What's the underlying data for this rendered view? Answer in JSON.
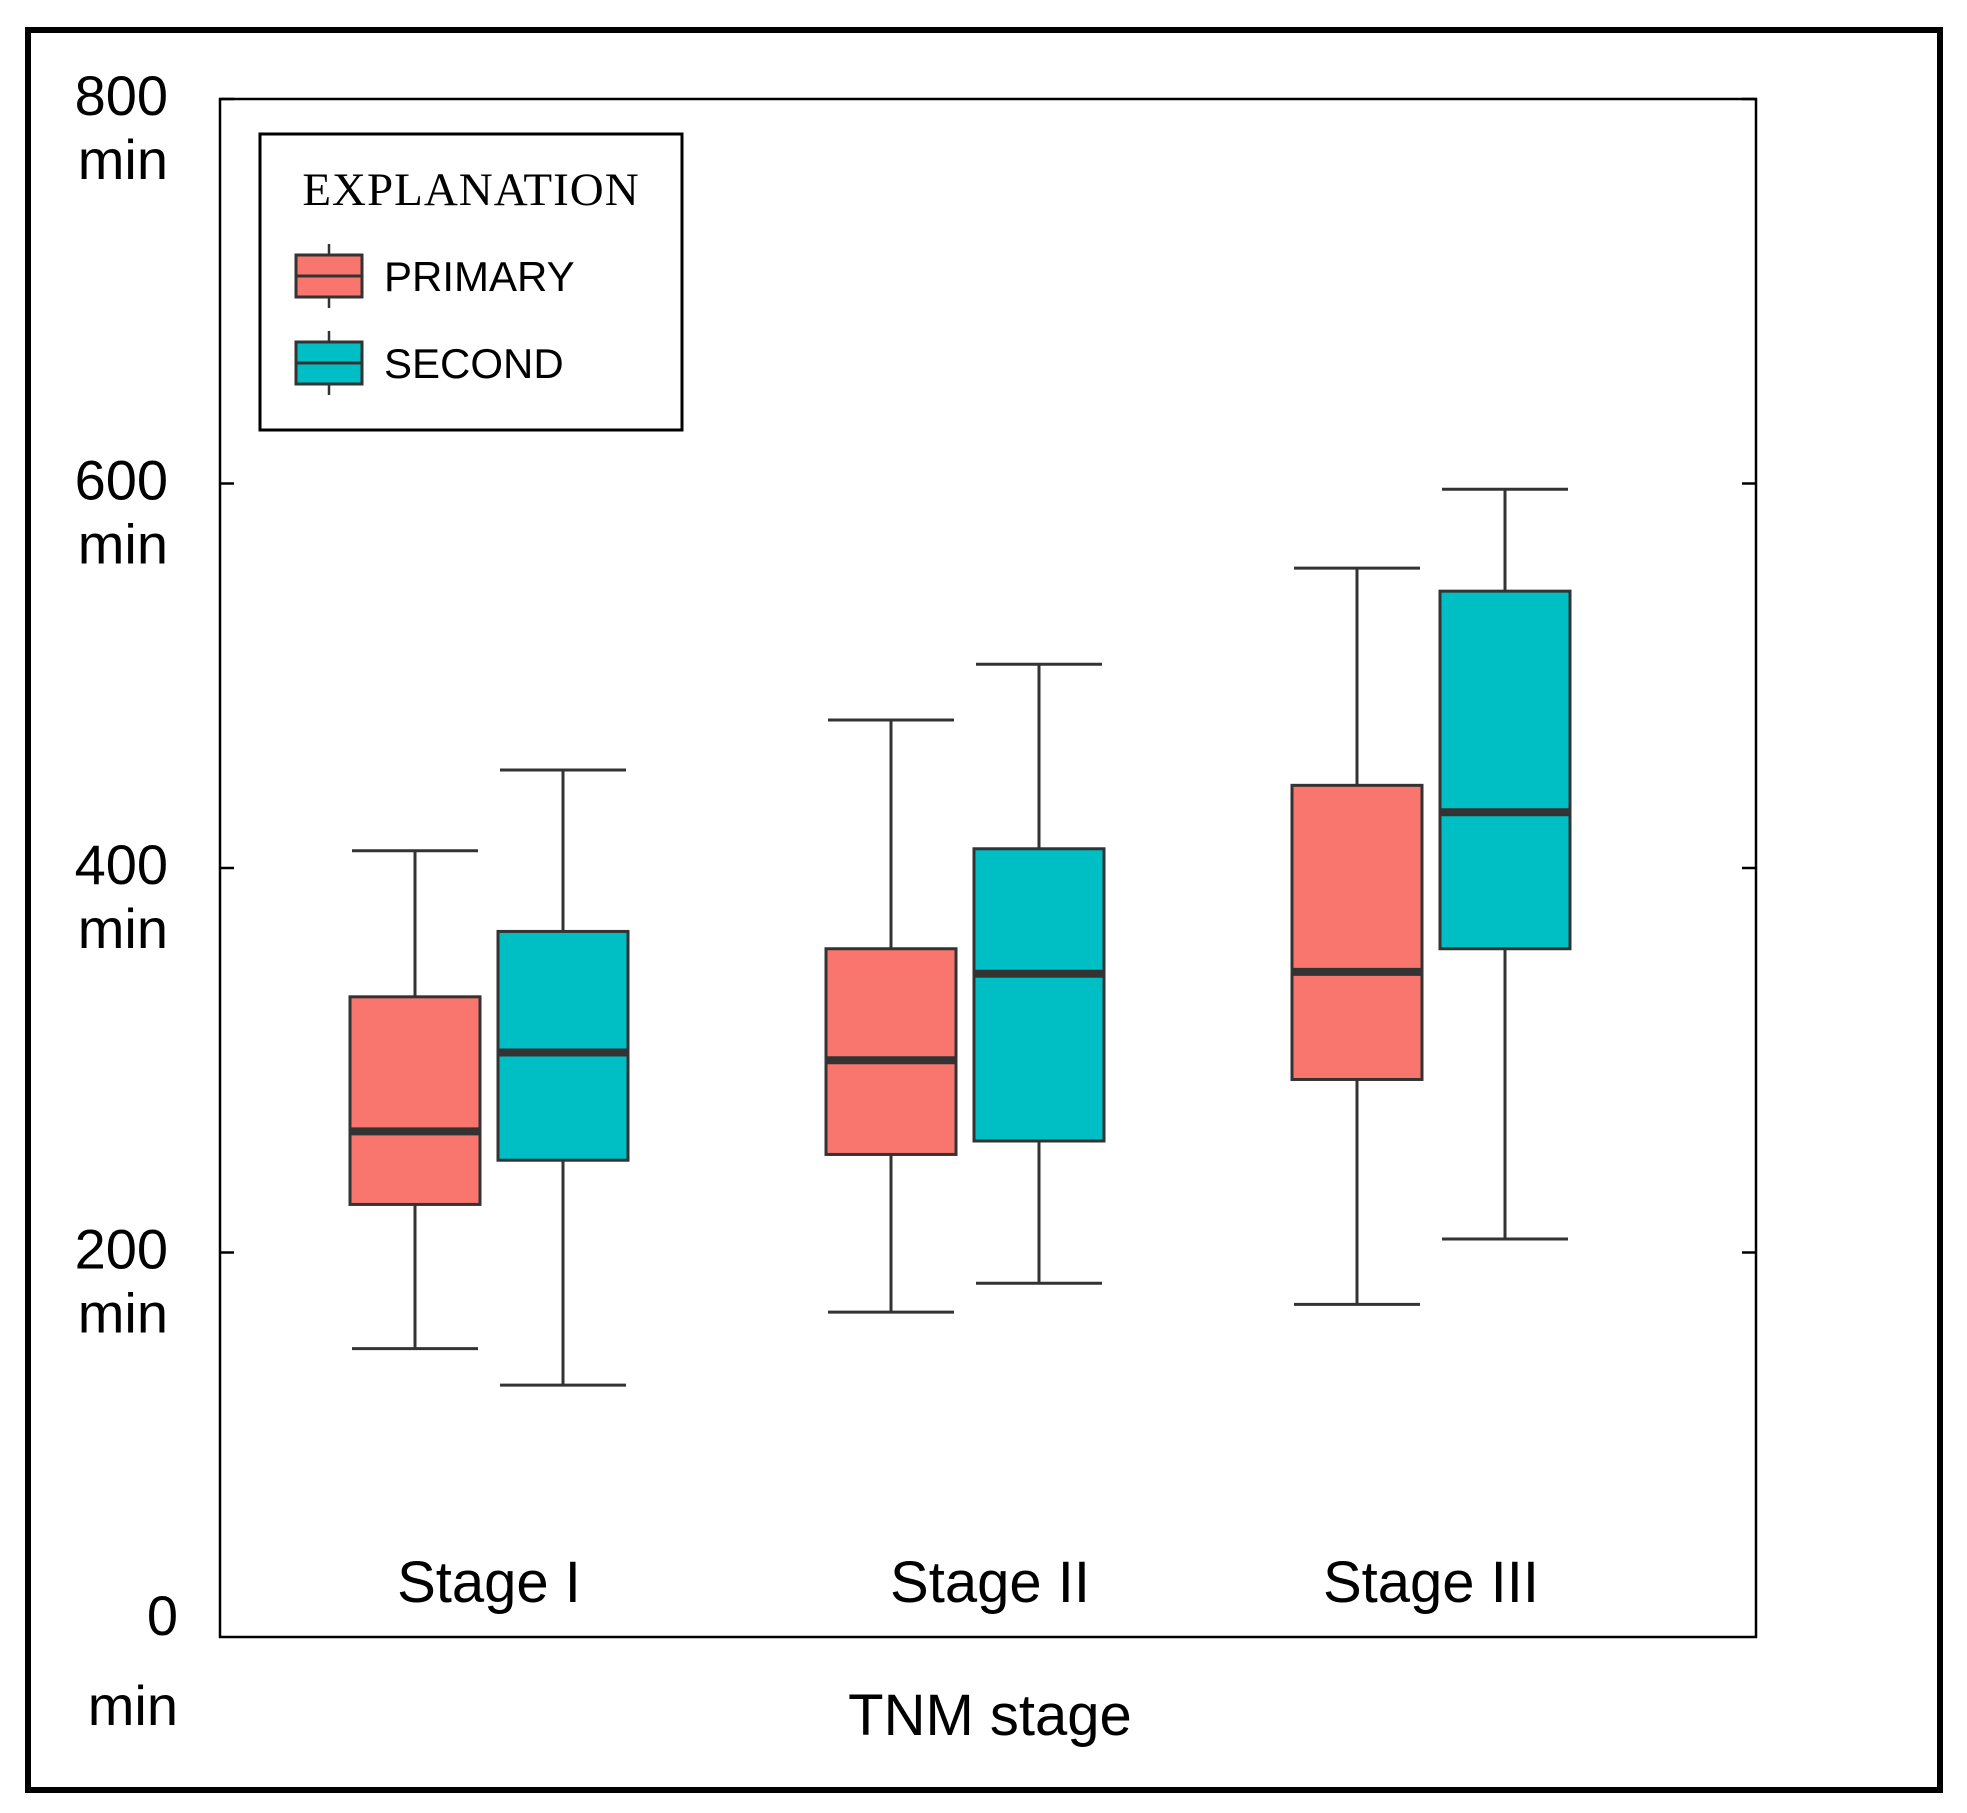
{
  "chart_data": {
    "type": "box",
    "categories": [
      "Stage I",
      "Stage II",
      "Stage III"
    ],
    "series": [
      {
        "name": "PRIMARY",
        "color": "#f8766d",
        "boxes": [
          {
            "whisker_low": 150,
            "q1": 225,
            "median": 263,
            "q3": 333,
            "whisker_high": 409
          },
          {
            "whisker_low": 169,
            "q1": 251,
            "median": 300,
            "q3": 358,
            "whisker_high": 477
          },
          {
            "whisker_low": 173,
            "q1": 290,
            "median": 346,
            "q3": 443,
            "whisker_high": 556
          }
        ]
      },
      {
        "name": "SECOND",
        "color": "#00bfc4",
        "boxes": [
          {
            "whisker_low": 131,
            "q1": 248,
            "median": 304,
            "q3": 367,
            "whisker_high": 451
          },
          {
            "whisker_low": 184,
            "q1": 258,
            "median": 345,
            "q3": 410,
            "whisker_high": 506
          },
          {
            "whisker_low": 207,
            "q1": 358,
            "median": 429,
            "q3": 544,
            "whisker_high": 597
          }
        ]
      }
    ],
    "xlabel": "TNM stage",
    "ylim": [
      0,
      800
    ],
    "yticks": [
      {
        "value": 0,
        "label": "0",
        "unit": "min"
      },
      {
        "value": 200,
        "label": "200",
        "unit": "min"
      },
      {
        "value": 400,
        "label": "400",
        "unit": "min"
      },
      {
        "value": 600,
        "label": "600",
        "unit": "min"
      },
      {
        "value": 800,
        "label": "800",
        "unit": "min"
      }
    ],
    "legend": {
      "title": "EXPLANATION",
      "position": "top-left"
    },
    "grid": false
  }
}
